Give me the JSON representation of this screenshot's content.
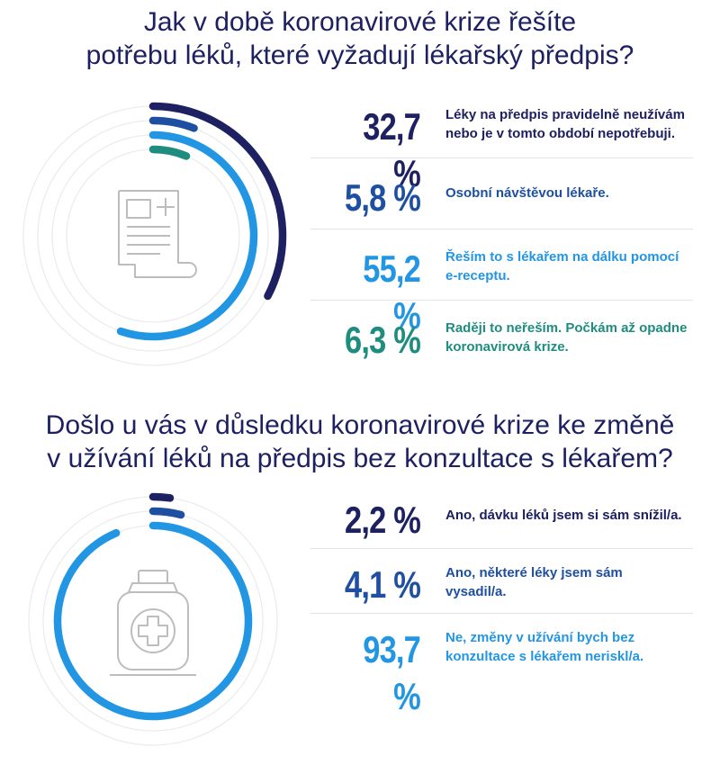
{
  "colors": {
    "navy": "#1d2061",
    "blue": "#1e4fa0",
    "light_blue": "#2296e3",
    "teal": "#1e8c7f",
    "track": "#ececec",
    "icon": "#bdbdbd"
  },
  "chart_data": [
    {
      "type": "donut",
      "title_lines": [
        "Jak v době koronavirové krize řešíte",
        "potřebu léků, které vyžadují lékařský předpis?"
      ],
      "icon": "prescription-document-icon",
      "series": [
        {
          "label_lines": [
            "Léky na předpis pravidelně neužívám",
            "nebo je v tomto období nepotřebuji."
          ],
          "value": 32.7,
          "display": "32,7 %",
          "color": "#1d2061"
        },
        {
          "label_lines": [
            "Osobní návštěvou lékaře."
          ],
          "value": 5.8,
          "display": "5,8 %",
          "color": "#1e4fa0"
        },
        {
          "label_lines": [
            "Řeším to s lékařem na dálku pomocí",
            "e-receptu."
          ],
          "value": 55.2,
          "display": "55,2 %",
          "color": "#2296e3"
        },
        {
          "label_lines": [
            "Raději to neřeším. Počkám až opadne",
            "koronavirová krize."
          ],
          "value": 6.3,
          "display": "6,3 %",
          "color": "#1e8c7f"
        }
      ]
    },
    {
      "type": "donut",
      "title_lines": [
        "Došlo u vás v důsledku koronavirové krize ke změně",
        "v užívání léků na předpis bez konzultace s lékařem?"
      ],
      "icon": "medicine-bottle-icon",
      "series": [
        {
          "label_lines": [
            "Ano, dávku léků jsem si sám snížil/a."
          ],
          "value": 2.2,
          "display": "2,2 %",
          "color": "#1d2061"
        },
        {
          "label_lines": [
            "Ano, některé léky jsem sám",
            "vysadil/a."
          ],
          "value": 4.1,
          "display": "4,1 %",
          "color": "#1e4fa0"
        },
        {
          "label_lines": [
            "Ne, změny v užívání bych bez",
            "konzultace s lékařem neriskl/a."
          ],
          "value": 93.7,
          "display": "93,7 %",
          "color": "#2296e3"
        }
      ]
    }
  ]
}
